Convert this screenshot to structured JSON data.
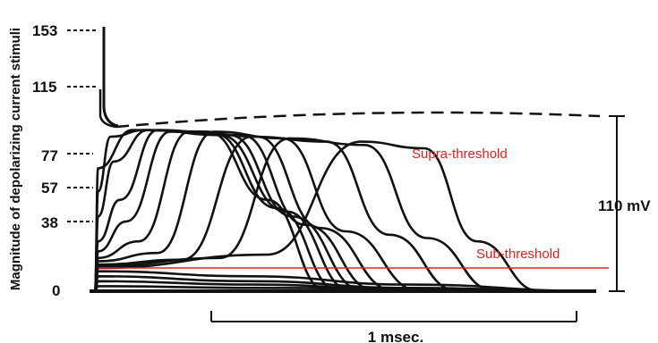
{
  "chart_data": {
    "type": "line",
    "ylabel": "Magnitude of depolarizing current stimuli",
    "y_tick_labels": [
      "153",
      "115",
      "77",
      "57",
      "38",
      "0"
    ],
    "stimulus_magnitudes": [
      0,
      38,
      57,
      77,
      115,
      153
    ],
    "annotations": {
      "supra": "Supra-threshold",
      "sub": "Sub-threshold"
    },
    "scale_bars": {
      "voltage": "110 mV",
      "time": "1 msec."
    },
    "colors": {
      "traces": "#111111",
      "threshold_line": "#e02020",
      "annotation_text": "#e02020"
    },
    "threshold_level_fraction_of_110mV": 0.14,
    "series": [
      {
        "values": [
          [
            0,
            0
          ],
          [
            0.01,
            0.74
          ],
          [
            0.12,
            0.97
          ],
          [
            0.36,
            0.96
          ],
          [
            0.55,
            0.55
          ],
          [
            0.74,
            0.0
          ],
          [
            1.6,
            0.0
          ]
        ]
      },
      {
        "values": [
          [
            0,
            0
          ],
          [
            0.01,
            0.6
          ],
          [
            0.05,
            0.93
          ],
          [
            0.16,
            0.97
          ],
          [
            0.38,
            0.95
          ],
          [
            0.58,
            0.5
          ],
          [
            0.78,
            0.0
          ],
          [
            1.6,
            0.0
          ]
        ]
      },
      {
        "values": [
          [
            0,
            0
          ],
          [
            0.01,
            0.45
          ],
          [
            0.06,
            0.78
          ],
          [
            0.17,
            0.97
          ],
          [
            0.4,
            0.94
          ],
          [
            0.61,
            0.48
          ],
          [
            0.82,
            0.0
          ],
          [
            1.6,
            0.0
          ]
        ]
      },
      {
        "values": [
          [
            0,
            0
          ],
          [
            0.01,
            0.3
          ],
          [
            0.08,
            0.55
          ],
          [
            0.2,
            0.97
          ],
          [
            0.43,
            0.94
          ],
          [
            0.63,
            0.45
          ],
          [
            0.86,
            0.0
          ],
          [
            1.6,
            0.0
          ]
        ]
      },
      {
        "values": [
          [
            0,
            0
          ],
          [
            0.01,
            0.24
          ],
          [
            0.1,
            0.42
          ],
          [
            0.24,
            0.96
          ],
          [
            0.47,
            0.94
          ],
          [
            0.67,
            0.4
          ],
          [
            0.9,
            0.0
          ],
          [
            1.6,
            0.0
          ]
        ]
      },
      {
        "values": [
          [
            0,
            0
          ],
          [
            0.01,
            0.2
          ],
          [
            0.14,
            0.3
          ],
          [
            0.3,
            0.96
          ],
          [
            0.52,
            0.93
          ],
          [
            0.72,
            0.38
          ],
          [
            0.96,
            0.0
          ],
          [
            1.6,
            0.0
          ]
        ]
      },
      {
        "values": [
          [
            0,
            0
          ],
          [
            0.01,
            0.18
          ],
          [
            0.2,
            0.23
          ],
          [
            0.38,
            0.96
          ],
          [
            0.6,
            0.92
          ],
          [
            0.8,
            0.36
          ],
          [
            1.04,
            0.0
          ],
          [
            1.6,
            0.0
          ]
        ]
      },
      {
        "values": [
          [
            0,
            0
          ],
          [
            0.01,
            0.16
          ],
          [
            0.28,
            0.19
          ],
          [
            0.5,
            0.93
          ],
          [
            0.74,
            0.9
          ],
          [
            0.94,
            0.34
          ],
          [
            1.16,
            0.0
          ],
          [
            1.6,
            0.0
          ]
        ]
      },
      {
        "values": [
          [
            0,
            0
          ],
          [
            0.01,
            0.15
          ],
          [
            0.4,
            0.2
          ],
          [
            0.62,
            0.92
          ],
          [
            0.86,
            0.88
          ],
          [
            1.06,
            0.32
          ],
          [
            1.28,
            0.0
          ],
          [
            1.6,
            0.0
          ]
        ]
      },
      {
        "values": [
          [
            0,
            0
          ],
          [
            0.01,
            0.14
          ],
          [
            0.55,
            0.22
          ],
          [
            0.85,
            0.9
          ],
          [
            1.05,
            0.86
          ],
          [
            1.22,
            0.3
          ],
          [
            1.42,
            0.0
          ],
          [
            1.6,
            0.0
          ]
        ]
      },
      {
        "values": [
          [
            0,
            0
          ],
          [
            0.01,
            0.12
          ],
          [
            0.5,
            0.09
          ],
          [
            1.0,
            0.04
          ],
          [
            1.6,
            0.0
          ]
        ]
      },
      {
        "values": [
          [
            0,
            0
          ],
          [
            0.01,
            0.09
          ],
          [
            0.5,
            0.06
          ],
          [
            1.0,
            0.02
          ],
          [
            1.6,
            0.0
          ]
        ]
      },
      {
        "values": [
          [
            0,
            0
          ],
          [
            0.01,
            0.06
          ],
          [
            0.5,
            0.04
          ],
          [
            1.0,
            0.01
          ],
          [
            1.6,
            0.0
          ]
        ]
      },
      {
        "values": [
          [
            0,
            0
          ],
          [
            0.01,
            0.03
          ],
          [
            0.5,
            0.02
          ],
          [
            1.6,
            0.0
          ]
        ]
      }
    ]
  }
}
